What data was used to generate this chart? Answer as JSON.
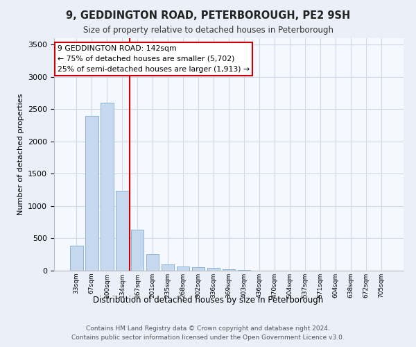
{
  "title": "9, GEDDINGTON ROAD, PETERBOROUGH, PE2 9SH",
  "subtitle": "Size of property relative to detached houses in Peterborough",
  "xlabel": "Distribution of detached houses by size in Peterborough",
  "ylabel": "Number of detached properties",
  "categories": [
    "33sqm",
    "67sqm",
    "100sqm",
    "134sqm",
    "167sqm",
    "201sqm",
    "235sqm",
    "268sqm",
    "302sqm",
    "336sqm",
    "369sqm",
    "403sqm",
    "436sqm",
    "470sqm",
    "504sqm",
    "537sqm",
    "571sqm",
    "604sqm",
    "638sqm",
    "672sqm",
    "705sqm"
  ],
  "values": [
    390,
    2400,
    2600,
    1240,
    630,
    255,
    100,
    60,
    50,
    40,
    20,
    10,
    0,
    0,
    0,
    0,
    0,
    0,
    0,
    0,
    0
  ],
  "bar_color": "#c5d8ed",
  "bar_edge_color": "#8ab4d8",
  "vline_x": 3.5,
  "vline_color": "#cc0000",
  "annotation_text": "9 GEDDINGTON ROAD: 142sqm\n← 75% of detached houses are smaller (5,702)\n25% of semi-detached houses are larger (1,913) →",
  "annotation_box_color": "#ffffff",
  "annotation_box_edge": "#cc0000",
  "ylim": [
    0,
    3600
  ],
  "yticks": [
    0,
    500,
    1000,
    1500,
    2000,
    2500,
    3000,
    3500
  ],
  "footer": "Contains HM Land Registry data © Crown copyright and database right 2024.\nContains public sector information licensed under the Open Government Licence v3.0.",
  "bg_color": "#eaeff8",
  "plot_bg_color": "#f5f8ff",
  "grid_color": "#d0d8e8"
}
